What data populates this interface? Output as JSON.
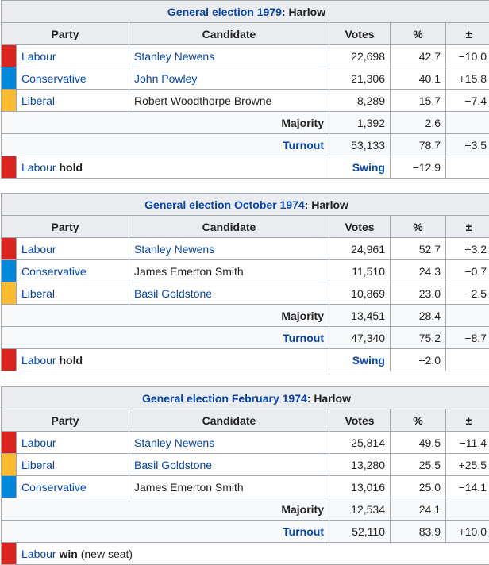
{
  "colors": {
    "labour": "#dc241f",
    "conservative": "#0087dc",
    "liberal": "#fdbb30",
    "link": "#0645ad",
    "header_bg": "#eaecf0",
    "border": "#a2a9b1"
  },
  "headers": {
    "party": "Party",
    "candidate": "Candidate",
    "votes": "Votes",
    "pct": "%",
    "change": "±"
  },
  "tables": [
    {
      "title_link": "General election 1979",
      "title_rest": ": Harlow",
      "rows": [
        {
          "party": "Labour",
          "color": "#dc241f",
          "candidate": "Stanley Newens",
          "candidate_link": true,
          "votes": "22,698",
          "pct": "42.7",
          "change": "−10.0"
        },
        {
          "party": "Conservative",
          "color": "#0087dc",
          "candidate": "John Powley",
          "candidate_link": true,
          "votes": "21,306",
          "pct": "40.1",
          "change": "+15.8"
        },
        {
          "party": "Liberal",
          "color": "#fdbb30",
          "candidate": "Robert Woodthorpe Browne",
          "candidate_link": false,
          "votes": "8,289",
          "pct": "15.7",
          "change": "−7.4"
        }
      ],
      "majority": {
        "label": "Majority",
        "votes": "1,392",
        "pct": "2.6",
        "change": ""
      },
      "turnout": {
        "label": "Turnout",
        "votes": "53,133",
        "pct": "78.7",
        "change": "+3.5"
      },
      "result": {
        "party": "Labour",
        "word": "hold",
        "extra": "",
        "swing_label": "Swing",
        "swing": "−12.9"
      }
    },
    {
      "title_link": "General election October 1974",
      "title_rest": ": Harlow",
      "rows": [
        {
          "party": "Labour",
          "color": "#dc241f",
          "candidate": "Stanley Newens",
          "candidate_link": true,
          "votes": "24,961",
          "pct": "52.7",
          "change": "+3.2"
        },
        {
          "party": "Conservative",
          "color": "#0087dc",
          "candidate": "James Emerton Smith",
          "candidate_link": false,
          "votes": "11,510",
          "pct": "24.3",
          "change": "−0.7"
        },
        {
          "party": "Liberal",
          "color": "#fdbb30",
          "candidate": "Basil Goldstone",
          "candidate_link": true,
          "votes": "10,869",
          "pct": "23.0",
          "change": "−2.5"
        }
      ],
      "majority": {
        "label": "Majority",
        "votes": "13,451",
        "pct": "28.4",
        "change": ""
      },
      "turnout": {
        "label": "Turnout",
        "votes": "47,340",
        "pct": "75.2",
        "change": "−8.7"
      },
      "result": {
        "party": "Labour",
        "word": "hold",
        "extra": "",
        "swing_label": "Swing",
        "swing": "+2.0"
      }
    },
    {
      "title_link": "General election February 1974",
      "title_rest": ": Harlow",
      "rows": [
        {
          "party": "Labour",
          "color": "#dc241f",
          "candidate": "Stanley Newens",
          "candidate_link": true,
          "votes": "25,814",
          "pct": "49.5",
          "change": "−11.4"
        },
        {
          "party": "Liberal",
          "color": "#fdbb30",
          "candidate": "Basil Goldstone",
          "candidate_link": true,
          "votes": "13,280",
          "pct": "25.5",
          "change": "+25.5"
        },
        {
          "party": "Conservative",
          "color": "#0087dc",
          "candidate": "James Emerton Smith",
          "candidate_link": false,
          "votes": "13,016",
          "pct": "25.0",
          "change": "−14.1"
        }
      ],
      "majority": {
        "label": "Majority",
        "votes": "12,534",
        "pct": "24.1",
        "change": ""
      },
      "turnout": {
        "label": "Turnout",
        "votes": "52,110",
        "pct": "83.9",
        "change": "+10.0"
      },
      "result": {
        "party": "Labour",
        "word": "win",
        "extra": " (new seat)",
        "swing_label": "",
        "swing": ""
      }
    }
  ]
}
